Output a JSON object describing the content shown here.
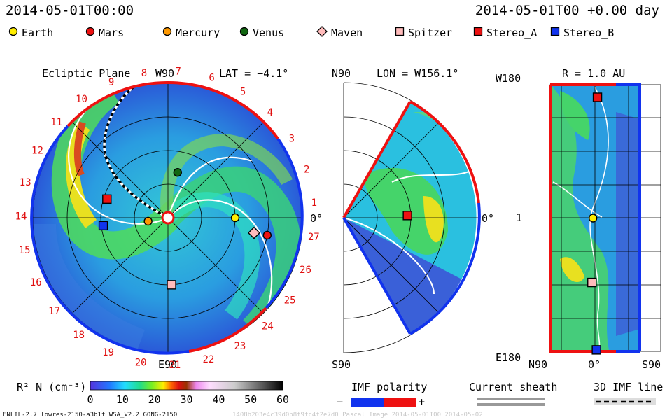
{
  "header": {
    "timestamp_left": "2014-05-01T00:00",
    "timestamp_right": "2014-05-01T00 +0.00 day"
  },
  "legend": [
    {
      "name": "Earth",
      "shape": "circle",
      "color": "#ffee00"
    },
    {
      "name": "Mars",
      "shape": "circle",
      "color": "#ee1111"
    },
    {
      "name": "Mercury",
      "shape": "circle",
      "color": "#ff9900"
    },
    {
      "name": "Venus",
      "shape": "circle",
      "color": "#116611"
    },
    {
      "name": "Maven",
      "shape": "diamond",
      "color": "#ffbbbb"
    },
    {
      "name": "Spitzer",
      "shape": "square",
      "color": "#ffbbbb"
    },
    {
      "name": "Stereo_A",
      "shape": "square",
      "color": "#ee1111"
    },
    {
      "name": "Stereo_B",
      "shape": "square",
      "color": "#1133ee"
    }
  ],
  "chart_data": [
    {
      "type": "heatmap",
      "panel": "ecliptic",
      "title": "Ecliptic Plane",
      "top_label": "W90",
      "bottom_label": "E90",
      "right_label": "0°",
      "lat_label": "LAT = −4.1°",
      "sector_labels": [
        "1",
        "2",
        "3",
        "4",
        "5",
        "6",
        "7",
        "8",
        "9",
        "10",
        "11",
        "12",
        "13",
        "14",
        "15",
        "16",
        "17",
        "18",
        "19",
        "20",
        "21",
        "22",
        "23",
        "24",
        "25",
        "26",
        "27"
      ],
      "objects": [
        {
          "name": "Earth",
          "angle_deg": 0,
          "r_au": 1.0
        },
        {
          "name": "Mars",
          "angle_deg": -10,
          "r_au": 1.5
        },
        {
          "name": "Mercury",
          "angle_deg": 190,
          "r_au": 0.3
        },
        {
          "name": "Venus",
          "angle_deg": 78,
          "r_au": 0.69
        },
        {
          "name": "Maven",
          "angle_deg": -10,
          "r_au": 1.3
        },
        {
          "name": "Spitzer",
          "angle_deg": -87,
          "r_au": 1.0
        },
        {
          "name": "Stereo_A",
          "angle_deg": 163,
          "r_au": 0.95
        },
        {
          "name": "Stereo_B",
          "angle_deg": 187,
          "r_au": 0.97
        }
      ]
    },
    {
      "type": "heatmap",
      "panel": "meridional",
      "top_label": "N90",
      "bottom_label": "S90",
      "right_label": "0°",
      "lon_label": "LON = W156.1°",
      "objects": [
        {
          "name": "Stereo_A",
          "angle_deg": 2,
          "r_au": 0.95
        }
      ]
    },
    {
      "type": "heatmap",
      "panel": "lat_lon_map",
      "title": "R = 1.0 AU",
      "y_top_label": "W180",
      "y_mid_label": "1",
      "y_bottom_label": "E180",
      "x_left_label": "N90",
      "x_mid_label": "0°",
      "x_right_label": "S90",
      "objects": [
        {
          "name": "Stereo_A",
          "lat_deg": -5,
          "lon_deg": 163
        },
        {
          "name": "Earth",
          "lat_deg": 4,
          "lon_deg": 0
        },
        {
          "name": "Spitzer",
          "lat_deg": 6,
          "lon_deg": -87
        },
        {
          "name": "Stereo_B",
          "lat_deg": -3,
          "lon_deg": -178
        }
      ]
    }
  ],
  "colorbar": {
    "label": "R² N (cm⁻³)",
    "range": [
      0,
      60
    ],
    "ticks": [
      "0",
      "10",
      "20",
      "30",
      "40",
      "50",
      "60"
    ]
  },
  "imf_polarity": {
    "label": "IMF polarity",
    "minus": "−",
    "plus": "+",
    "neg_color": "#1133ee",
    "pos_color": "#ee1111"
  },
  "current_sheath": {
    "label": "Current sheath"
  },
  "imf_line": {
    "label": "3D IMF line"
  },
  "footer": {
    "left": "ENLIL-2.7 lowres-2150-a3b1f WSA_V2.2 GONG-2150",
    "right": "1408b203e4c39d0b8f9fc4f2e7d0 Pascal Image 2014-05-01T00 2014-05-02"
  }
}
